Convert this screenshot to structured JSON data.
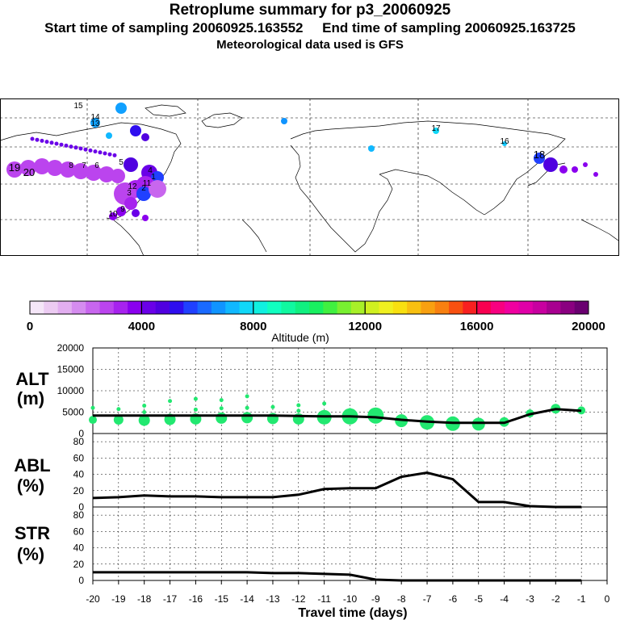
{
  "header": {
    "title": "Retroplume summary for p3_20060925",
    "line2_start": "Start time of sampling 20060925.163552",
    "line2_end": "End time of sampling 20060925.163725",
    "line3": "Meteorological data used is GFS"
  },
  "map": {
    "labels": [
      "1",
      "2",
      "3",
      "4",
      "5",
      "6",
      "7",
      "8",
      "9",
      "10",
      "11",
      "12",
      "13",
      "14",
      "15",
      "16",
      "17",
      "18",
      "19",
      "20"
    ]
  },
  "colorbar": {
    "ticks": [
      "0",
      "4000",
      "8000",
      "12000",
      "16000",
      "20000"
    ],
    "title": "Altitude (m)",
    "colors": [
      "#f5e6f8",
      "#eccbf2",
      "#e2aef0",
      "#d58cef",
      "#c866ee",
      "#bb44ee",
      "#a722ee",
      "#8a00ee",
      "#6a00e8",
      "#5000e0",
      "#2e0eef",
      "#2040ff",
      "#1a6aff",
      "#1094ff",
      "#10b8ff",
      "#10d8f8",
      "#10f0e0",
      "#10ffc0",
      "#10f8a0",
      "#10f080",
      "#18f060",
      "#40f040",
      "#78f030",
      "#a8f028",
      "#d0f020",
      "#f0f020",
      "#f8e010",
      "#f8c010",
      "#f8a010",
      "#f88010",
      "#f85010",
      "#f82020",
      "#f80050",
      "#f80080",
      "#f000a0",
      "#e000a8",
      "#c800a0",
      "#a80090",
      "#8a0080",
      "#6a0070"
    ]
  },
  "chart_data": [
    {
      "type": "line",
      "panel": "ALT",
      "ylabel": "ALT\n(m)",
      "ylabel_line1": "ALT",
      "ylabel_line2": "(m)",
      "ylim": [
        0,
        20000
      ],
      "yticks": [
        "0",
        "5000",
        "10000",
        "15000",
        "20000"
      ],
      "x": [
        -20,
        -19,
        -18,
        -17,
        -16,
        -15,
        -14,
        -13,
        -12,
        -11,
        -10,
        -9,
        -8,
        -7,
        -6,
        -5,
        -4,
        -3,
        -2,
        -1
      ],
      "series": [
        {
          "name": "mean altitude",
          "values": [
            4200,
            4200,
            4200,
            4200,
            4200,
            4200,
            4200,
            4200,
            4100,
            4000,
            4000,
            3800,
            3200,
            2800,
            2500,
            2500,
            2500,
            4500,
            5700,
            5300
          ]
        }
      ],
      "points_main": [
        {
          "x": -20,
          "y": 3200,
          "s": 5
        },
        {
          "x": -19,
          "y": 3200,
          "s": 6
        },
        {
          "x": -18,
          "y": 3100,
          "s": 7
        },
        {
          "x": -17,
          "y": 3300,
          "s": 7
        },
        {
          "x": -16,
          "y": 3400,
          "s": 7
        },
        {
          "x": -15,
          "y": 3600,
          "s": 7
        },
        {
          "x": -14,
          "y": 3700,
          "s": 7
        },
        {
          "x": -13,
          "y": 3500,
          "s": 7
        },
        {
          "x": -12,
          "y": 3400,
          "s": 7
        },
        {
          "x": -11,
          "y": 3800,
          "s": 9
        },
        {
          "x": -10,
          "y": 4000,
          "s": 10
        },
        {
          "x": -9,
          "y": 4200,
          "s": 10
        },
        {
          "x": -8,
          "y": 3000,
          "s": 8
        },
        {
          "x": -7,
          "y": 2600,
          "s": 9
        },
        {
          "x": -6,
          "y": 2300,
          "s": 9
        },
        {
          "x": -5,
          "y": 2200,
          "s": 8
        },
        {
          "x": -4,
          "y": 2700,
          "s": 6
        },
        {
          "x": -3,
          "y": 4700,
          "s": 5
        },
        {
          "x": -2,
          "y": 5800,
          "s": 6
        },
        {
          "x": -1,
          "y": 5400,
          "s": 5
        }
      ],
      "points_small": [
        {
          "x": -20,
          "y": 6000
        },
        {
          "x": -19,
          "y": 5700
        },
        {
          "x": -18,
          "y": 6500
        },
        {
          "x": -18,
          "y": 5000
        },
        {
          "x": -17,
          "y": 7600
        },
        {
          "x": -16,
          "y": 8100
        },
        {
          "x": -16,
          "y": 5600
        },
        {
          "x": -15,
          "y": 7800
        },
        {
          "x": -15,
          "y": 5900
        },
        {
          "x": -14,
          "y": 8700
        },
        {
          "x": -14,
          "y": 6000
        },
        {
          "x": -13,
          "y": 6200
        },
        {
          "x": -12,
          "y": 6600
        },
        {
          "x": -12,
          "y": 5300
        },
        {
          "x": -11,
          "y": 7000
        },
        {
          "x": -10,
          "y": 5500
        }
      ]
    },
    {
      "type": "line",
      "panel": "ABL",
      "ylabel_line1": "ABL",
      "ylabel_line2": "(%)",
      "ylim": [
        0,
        90
      ],
      "yticks": [
        "0",
        "20",
        "40",
        "60",
        "80"
      ],
      "x": [
        -20,
        -19,
        -18,
        -17,
        -16,
        -15,
        -14,
        -13,
        -12,
        -11,
        -10,
        -9,
        -8,
        -7,
        -6,
        -5,
        -4,
        -3,
        -2,
        -1
      ],
      "series": [
        {
          "name": "fraction in ABL",
          "values": [
            11,
            12,
            14,
            13,
            13,
            12,
            12,
            12,
            15,
            22,
            23,
            23,
            37,
            42,
            34,
            6,
            6,
            1,
            0,
            0
          ]
        }
      ]
    },
    {
      "type": "line",
      "panel": "STR",
      "ylabel_line1": "STR",
      "ylabel_line2": "(%)",
      "ylim": [
        0,
        90
      ],
      "yticks": [
        "0",
        "20",
        "40",
        "60",
        "80"
      ],
      "x": [
        -20,
        -19,
        -18,
        -17,
        -16,
        -15,
        -14,
        -13,
        -12,
        -11,
        -10,
        -9,
        -8,
        -7,
        -6,
        -5,
        -4,
        -3,
        -2,
        -1
      ],
      "series": [
        {
          "name": "fraction in stratosphere",
          "values": [
            10,
            10,
            10,
            10,
            10,
            10,
            10,
            9,
            9,
            8,
            7,
            1,
            0,
            0,
            0,
            0,
            0,
            0,
            0,
            0
          ]
        }
      ],
      "xticks": [
        "-20",
        "-19",
        "-18",
        "-17",
        "-16",
        "-15",
        "-14",
        "-13",
        "-12",
        "-11",
        "-10",
        "-9",
        "-8",
        "-7",
        "-6",
        "-5",
        "-4",
        "-3",
        "-2",
        "-1",
        "0"
      ],
      "xlabel": "Travel time (days)"
    }
  ]
}
